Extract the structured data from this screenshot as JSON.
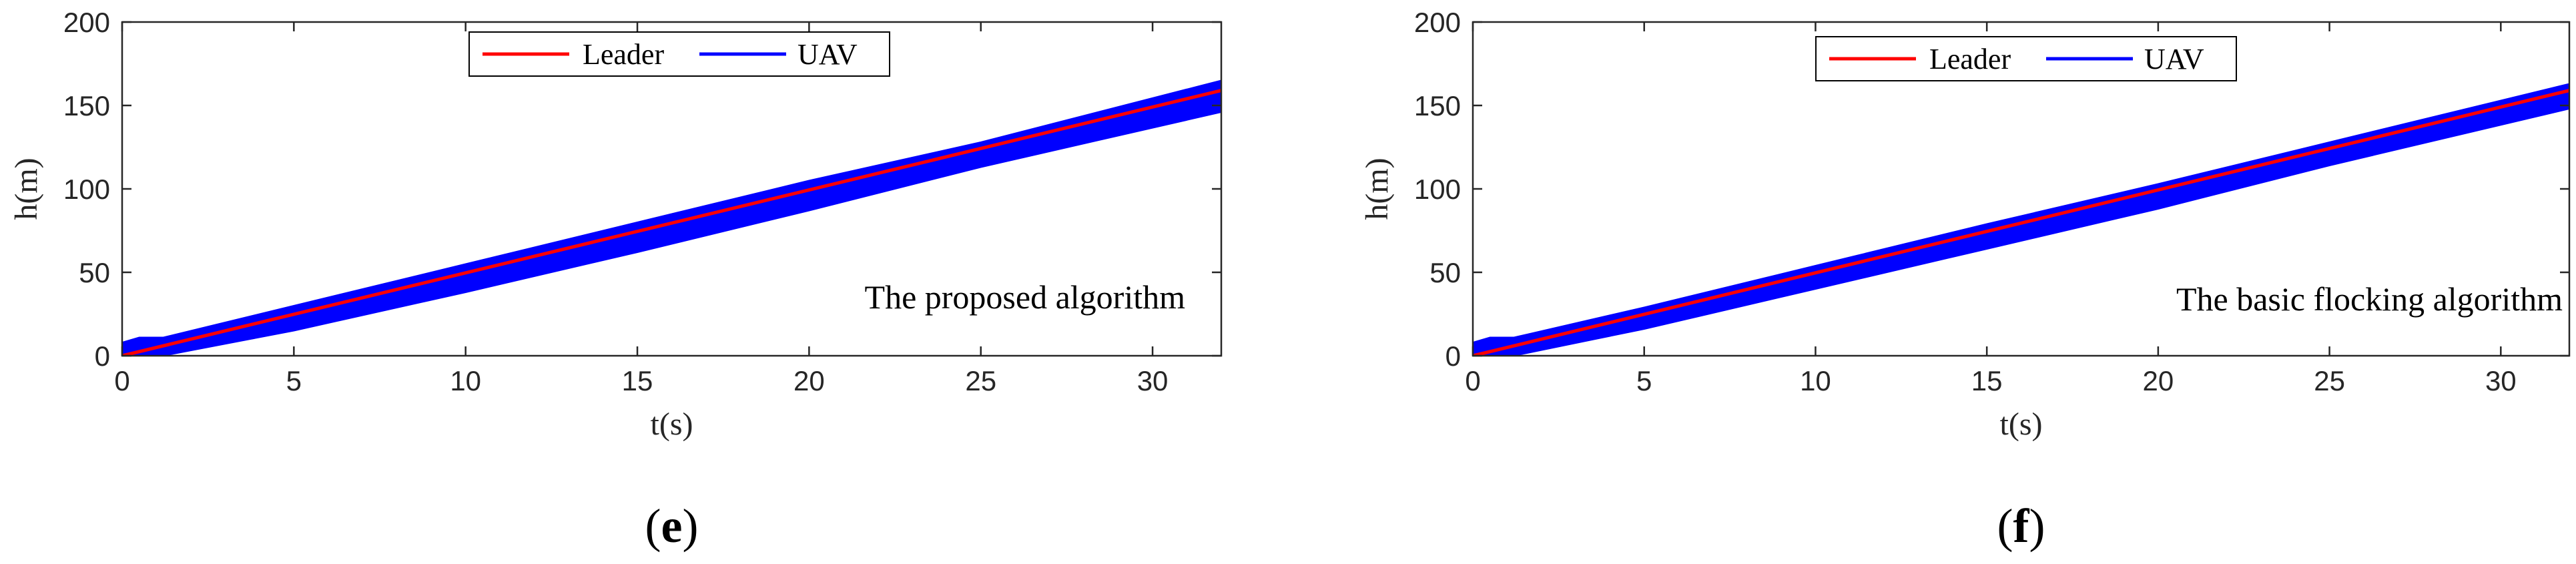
{
  "colors": {
    "leader": "#ff0000",
    "uav": "#0000ff",
    "axis": "#262626"
  },
  "chart_data": [
    {
      "type": "line",
      "panel_label_open": "(",
      "panel_label": "e",
      "panel_label_close": ")",
      "xlabel": "t(s)",
      "ylabel": "h(m)",
      "xlim": [
        0,
        32
      ],
      "ylim": [
        0,
        200
      ],
      "xticks": [
        0,
        5,
        10,
        15,
        20,
        25,
        30
      ],
      "yticks": [
        0,
        50,
        100,
        150,
        200
      ],
      "annotation": "The proposed algorithm",
      "legend_position": "top-center",
      "series": [
        {
          "name": "Leader",
          "color": "#ff0000",
          "x": [
            0,
            32
          ],
          "y": [
            0,
            159
          ]
        },
        {
          "name": "UAV",
          "color": "#0000ff",
          "x": [
            0,
            0.5,
            1.2,
            5,
            10,
            15,
            20,
            25,
            32
          ],
          "y_upper": [
            8,
            11,
            11,
            30,
            55,
            80,
            105,
            128,
            165
          ],
          "y_lower": [
            -2,
            -2,
            0,
            15,
            38,
            62,
            87,
            113,
            146
          ]
        }
      ]
    },
    {
      "type": "line",
      "panel_label_open": "(",
      "panel_label": "f",
      "panel_label_close": ")",
      "xlabel": "t(s)",
      "ylabel": "h(m)",
      "xlim": [
        0,
        32
      ],
      "ylim": [
        0,
        200
      ],
      "xticks": [
        0,
        5,
        10,
        15,
        20,
        25,
        30
      ],
      "yticks": [
        0,
        50,
        100,
        150,
        200
      ],
      "annotation": "The basic flocking algorithm",
      "legend_position": "top-center",
      "series": [
        {
          "name": "Leader",
          "color": "#ff0000",
          "x": [
            0,
            32
          ],
          "y": [
            0,
            159
          ]
        },
        {
          "name": "UAV",
          "color": "#0000ff",
          "x": [
            0,
            0.5,
            1.2,
            5,
            10,
            15,
            20,
            25,
            32
          ],
          "y_upper": [
            8,
            11,
            11,
            29,
            54,
            79,
            103,
            128,
            163
          ],
          "y_lower": [
            -2,
            -2,
            0,
            16,
            40,
            64,
            88,
            114,
            148
          ]
        }
      ]
    }
  ]
}
